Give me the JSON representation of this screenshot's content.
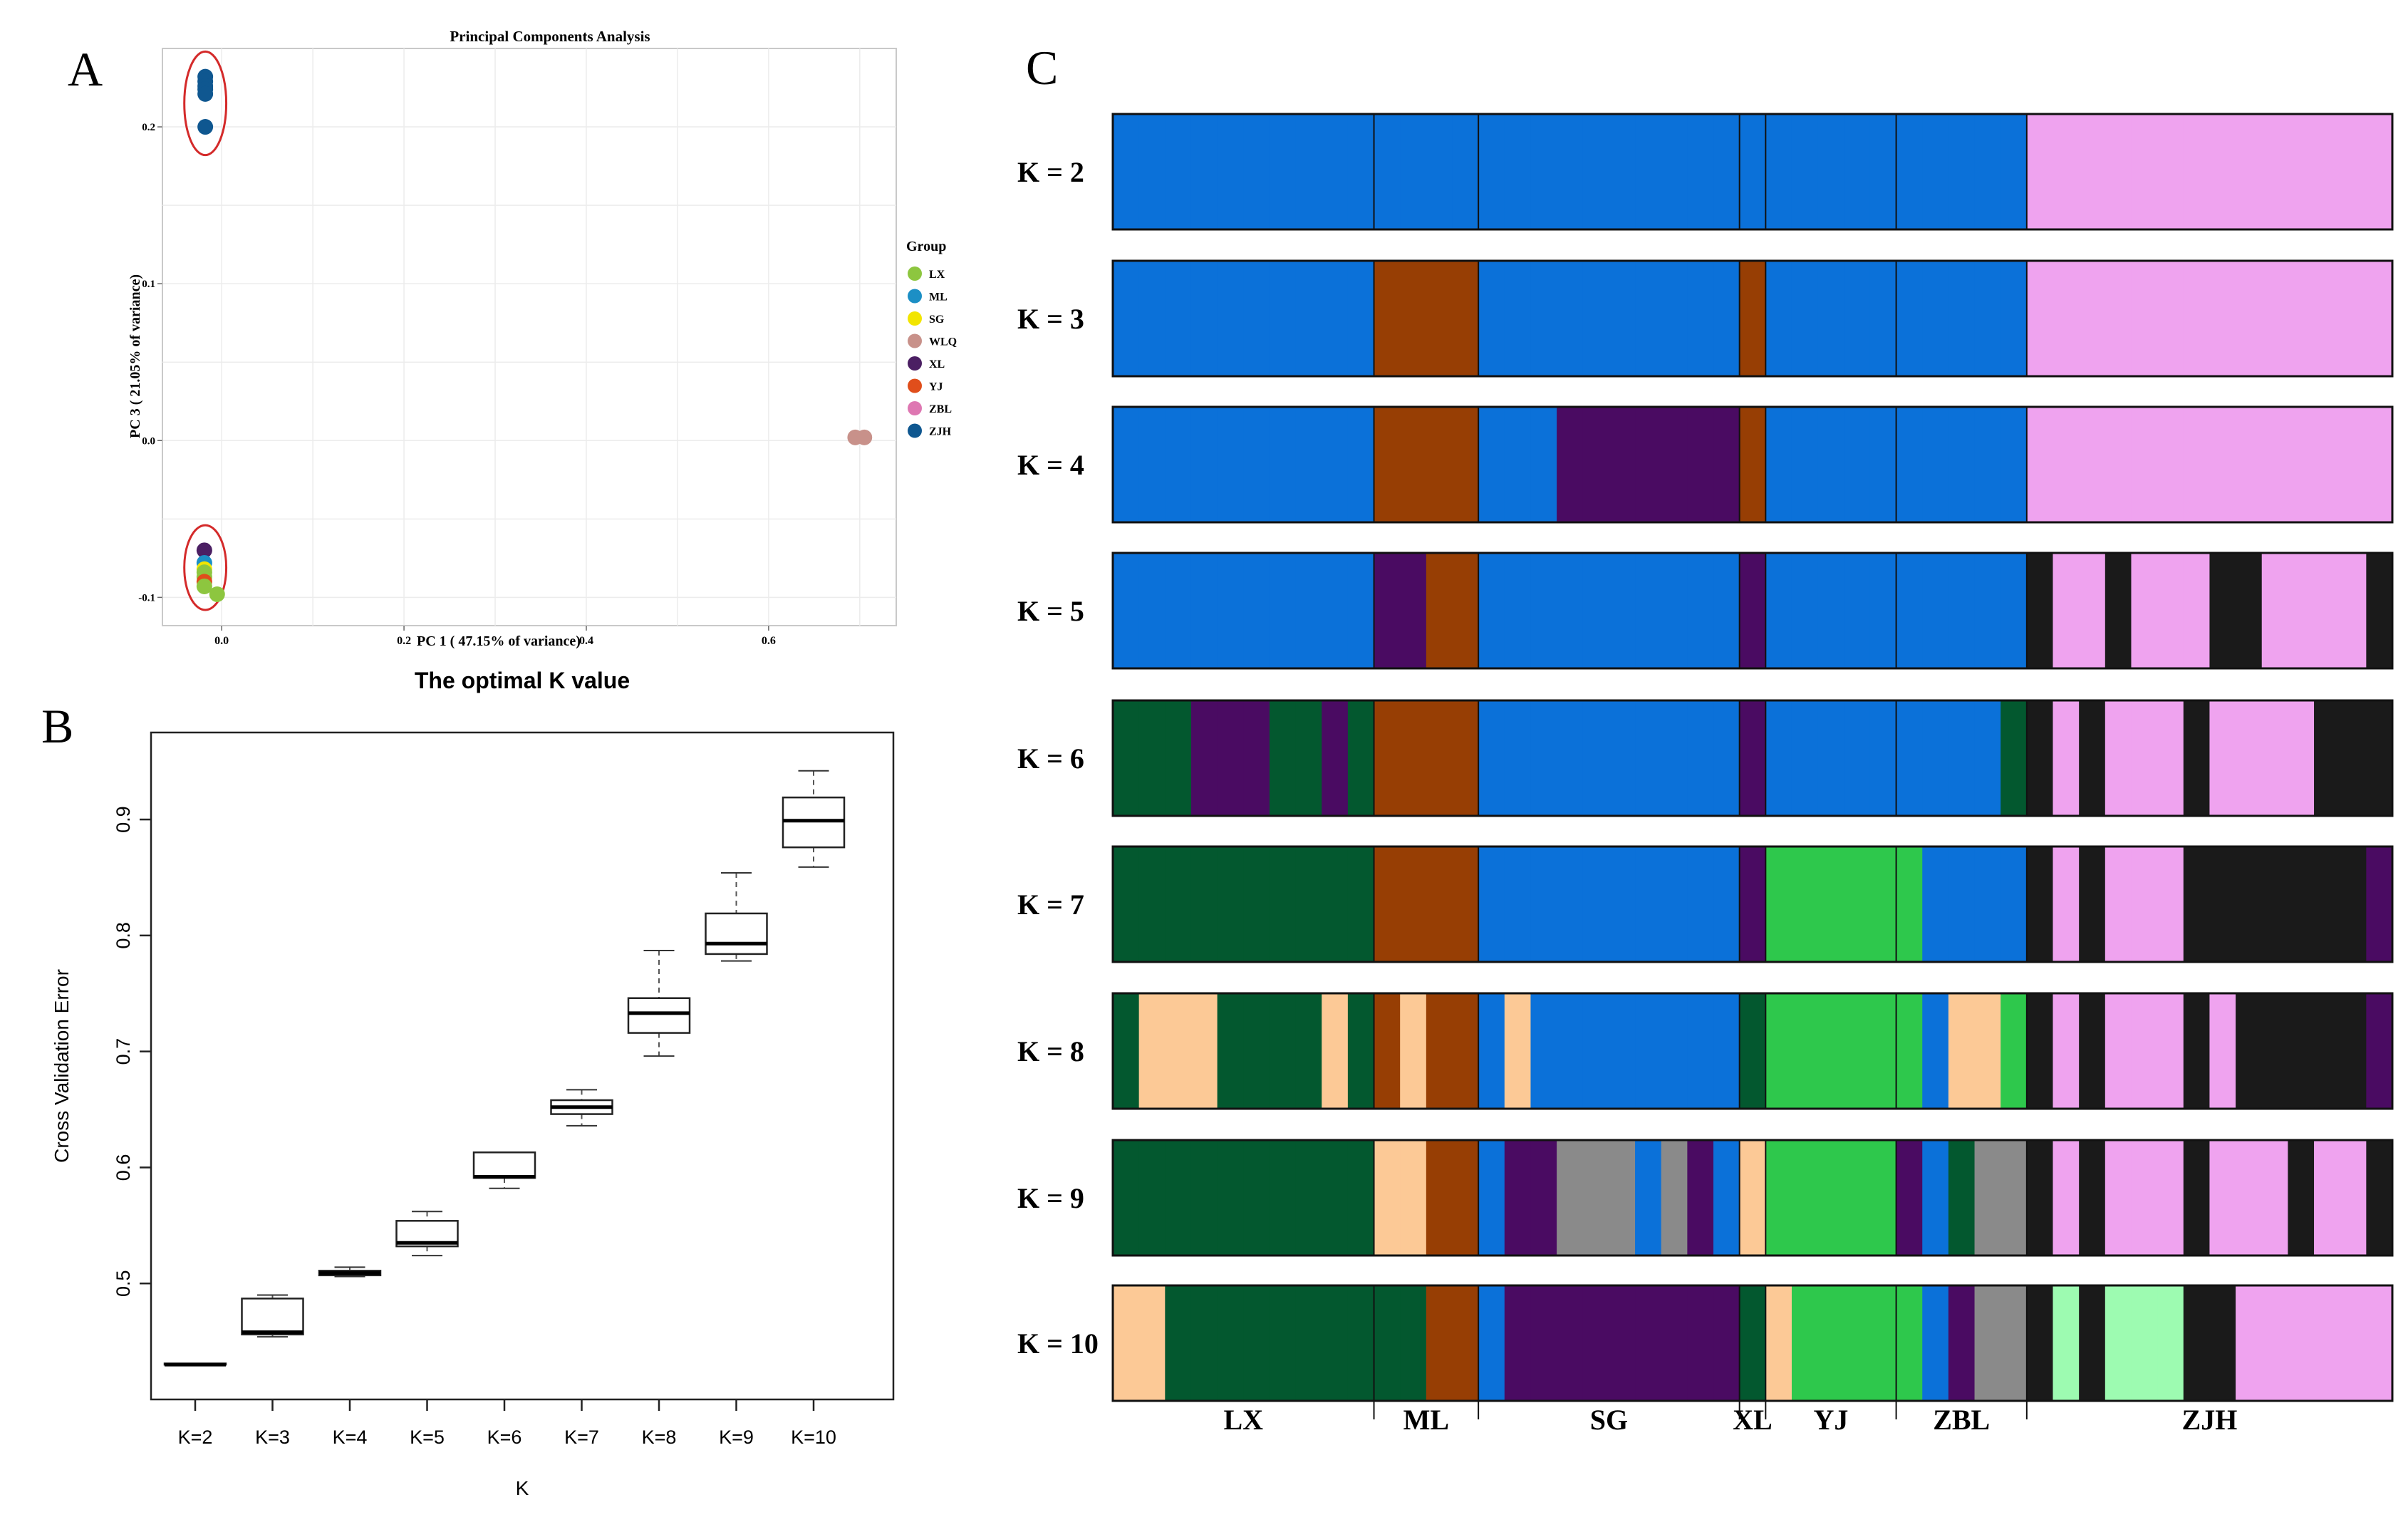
{
  "panels": {
    "a": "A",
    "b": "B",
    "c": "C"
  },
  "chart_data": [
    {
      "type": "scatter",
      "id": "pca",
      "title": "Principal Components Analysis",
      "xlabel": "PC 1 ( 47.15% of variance)",
      "ylabel": "PC 3 ( 21.05% of variance)",
      "xlim": [
        -0.065,
        0.74
      ],
      "ylim": [
        -0.118,
        0.25
      ],
      "x_ticks": [
        "0.0",
        "0.2",
        "0.4",
        "0.6"
      ],
      "x_tick_values": [
        0.0,
        0.2,
        0.4,
        0.6
      ],
      "y_ticks": [
        "-0.1",
        "0.0",
        "0.1",
        "0.2"
      ],
      "y_tick_values": [
        -0.1,
        0.0,
        0.1,
        0.2
      ],
      "legend_title": "Group",
      "legend": [
        {
          "name": "LX",
          "color": "#8dc63f"
        },
        {
          "name": "ML",
          "color": "#1c8fc5"
        },
        {
          "name": "SG",
          "color": "#f2e500"
        },
        {
          "name": "WLQ",
          "color": "#c8918a"
        },
        {
          "name": "XL",
          "color": "#4b1f63"
        },
        {
          "name": "YJ",
          "color": "#e04e1b"
        },
        {
          "name": "ZBL",
          "color": "#de77b2"
        },
        {
          "name": "ZJH",
          "color": "#0f5790"
        }
      ],
      "points": [
        {
          "group": "ZJH",
          "x": -0.018,
          "y": 0.232
        },
        {
          "group": "ZJH",
          "x": -0.018,
          "y": 0.229
        },
        {
          "group": "ZJH",
          "x": -0.018,
          "y": 0.226
        },
        {
          "group": "ZJH",
          "x": -0.018,
          "y": 0.224
        },
        {
          "group": "ZJH",
          "x": -0.018,
          "y": 0.221
        },
        {
          "group": "ZJH",
          "x": -0.018,
          "y": 0.2
        },
        {
          "group": "WLQ",
          "x": 0.695,
          "y": 0.002
        },
        {
          "group": "WLQ",
          "x": 0.705,
          "y": 0.002
        },
        {
          "group": "XL",
          "x": -0.019,
          "y": -0.07
        },
        {
          "group": "ML",
          "x": -0.019,
          "y": -0.078
        },
        {
          "group": "SG",
          "x": -0.019,
          "y": -0.082
        },
        {
          "group": "LX",
          "x": -0.019,
          "y": -0.084
        },
        {
          "group": "LX",
          "x": -0.019,
          "y": -0.087
        },
        {
          "group": "YJ",
          "x": -0.019,
          "y": -0.09
        },
        {
          "group": "LX",
          "x": -0.019,
          "y": -0.093
        },
        {
          "group": "LX",
          "x": -0.005,
          "y": -0.098
        }
      ],
      "ellipses": [
        {
          "cx": -0.018,
          "cy": 0.215,
          "rx": 0.023,
          "ry": 0.033,
          "color": "#d42a2a"
        },
        {
          "cx": -0.018,
          "cy": -0.081,
          "rx": 0.023,
          "ry": 0.027,
          "color": "#d42a2a"
        }
      ]
    },
    {
      "type": "boxplot",
      "id": "cv",
      "title": "The optimal K value",
      "xlabel": "K",
      "ylabel": "Cross Validation Error",
      "ylim": [
        0.4,
        0.975
      ],
      "y_ticks": [
        "0.5",
        "0.6",
        "0.7",
        "0.8",
        "0.9"
      ],
      "y_tick_values": [
        0.5,
        0.6,
        0.7,
        0.8,
        0.9
      ],
      "categories": [
        "K=2",
        "K=3",
        "K=4",
        "K=5",
        "K=6",
        "K=7",
        "K=8",
        "K=9",
        "K=10"
      ],
      "boxes": [
        {
          "min": 0.43,
          "q1": 0.43,
          "median": 0.43,
          "q3": 0.431,
          "max": 0.431
        },
        {
          "min": 0.454,
          "q1": 0.456,
          "median": 0.458,
          "q3": 0.487,
          "max": 0.49
        },
        {
          "min": 0.506,
          "q1": 0.507,
          "median": 0.509,
          "q3": 0.511,
          "max": 0.514
        },
        {
          "min": 0.524,
          "q1": 0.532,
          "median": 0.535,
          "q3": 0.554,
          "max": 0.562
        },
        {
          "min": 0.582,
          "q1": 0.591,
          "median": 0.592,
          "q3": 0.613,
          "max": 0.613
        },
        {
          "min": 0.636,
          "q1": 0.646,
          "median": 0.652,
          "q3": 0.658,
          "max": 0.667
        },
        {
          "min": 0.696,
          "q1": 0.716,
          "median": 0.733,
          "q3": 0.746,
          "max": 0.787
        },
        {
          "min": 0.778,
          "q1": 0.784,
          "median": 0.793,
          "q3": 0.819,
          "max": 0.854
        },
        {
          "min": 0.859,
          "q1": 0.876,
          "median": 0.899,
          "q3": 0.919,
          "max": 0.942
        }
      ]
    },
    {
      "type": "stacked-bar",
      "id": "structure",
      "population_labels": [
        "LX",
        "ML",
        "SG",
        "XL",
        "YJ",
        "ZBL",
        "ZJH"
      ],
      "population_sizes": [
        10,
        4,
        10,
        1,
        5,
        5,
        14
      ],
      "cluster_colors": {
        "blue": "#0b71d9",
        "pink": "#efa3ef",
        "brown": "#973e04",
        "purple": "#4a0b62",
        "black": "#1a1a1a",
        "green": "#03582f",
        "lgreen": "#2ec84c",
        "peach": "#fcc996",
        "gray": "#8a8a8a",
        "mint": "#9dfbb1"
      },
      "rows": [
        {
          "label": "K = 2",
          "pattern": "BBBBBBBBBB|BBBB|BBBBBBBBBB|B|BBBBB|BBBBB|PPPPPPPPPPPPPP"
        },
        {
          "label": "K = 3",
          "pattern": "BBBBBBBBBB|RRRR|BBBBBBBBBB|R|BBBBB|BBBBB|PPPPPPPPPPPPPP"
        },
        {
          "label": "K = 4",
          "pattern": "BBBBBBBBBB|RRRR|BBBVVVVVVV|R|BBBBB|BBBBB|PPPPPPPPPPPPPP"
        },
        {
          "label": "K = 5",
          "pattern": "BBBBBBBBBB|VVRR|BBBBBBBBBB|V|BBBBB|BBBBB|KPPKPPPKKPPPPK"
        },
        {
          "label": "K = 6",
          "pattern": "GGGVVVGGVG|RRRR|BBBBBBBBBB|V|BBBBB|BBBBG|KPKPPPKPPPPKKK"
        },
        {
          "label": "K = 7",
          "pattern": "GGGGGGGGGG|RRRR|BBBBBBBBBB|V|LLLLL|LBBBB|KPKPPPKKKKKKKV"
        },
        {
          "label": "K = 8",
          "pattern": "GQQQGGGGQG|RQRR|BQBBBBBBBB|G|LLLLL|LBQQL|KPKPPPKPKKKKKV"
        },
        {
          "label": "K = 9",
          "pattern": "GGGGGGGGGG|QQRR|BVVYYYBYVB|Q|LLLLL|VBGYY|KPKPPPKPPPKPPK"
        },
        {
          "label": "K = 10",
          "pattern": "QQGGGGGGGG|GGRR|BVVVVVVVVV|G|QLLLL|LBVYY|KMKMMMKKPPPPPP"
        }
      ]
    }
  ]
}
